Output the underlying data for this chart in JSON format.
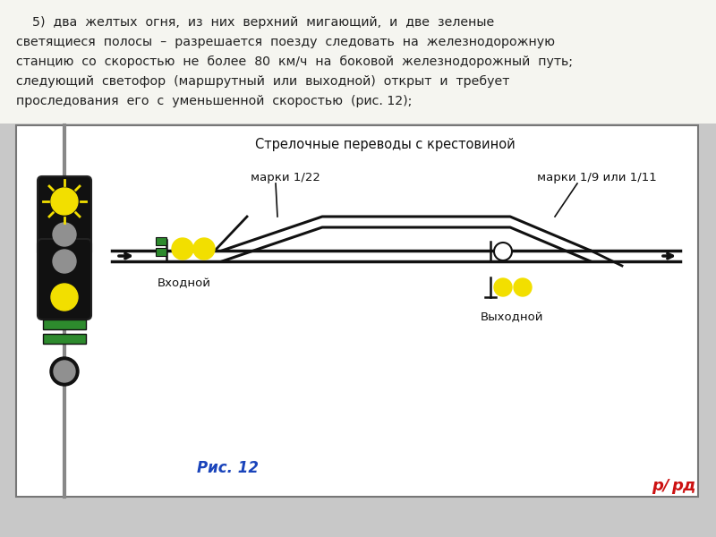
{
  "bg_color": "#c8c8c8",
  "panel_bg": "#f5f5f0",
  "text_color": "#222222",
  "diagram_title": "Стрелочные переводы с крестовиной",
  "label_marki1": "марки 1/22",
  "label_marki2": "марки 1/9 или 1/11",
  "label_vhodnoy": "Входной",
  "label_vykhodnoy": "Выходной",
  "label_ris": "Рис. 12",
  "yellow": "#f2df00",
  "green": "#2d8a2d",
  "black": "#111111",
  "dark_gray": "#444444",
  "gray": "#909090",
  "light_gray": "#cccccc",
  "red_logo": "#cc1111",
  "blue_label": "#1a44bb",
  "white": "#ffffff",
  "text_lines": [
    "    5)  два  желтых  огня,  из  них  верхний  мигающий,  и  две  зеленые",
    "светящиеся  полосы  –  разрешается  поезду  следовать  на  железнодорожную",
    "станцию  со  скоростью  не  более  80  км/ч  на  боковой  железнодорожный  путь;",
    "следующий  светофор  (маршрутный  или  выходной)  открыт  и  требует",
    "проследования  его  с  уменьшенной  скоростью  (рис. 12);"
  ]
}
